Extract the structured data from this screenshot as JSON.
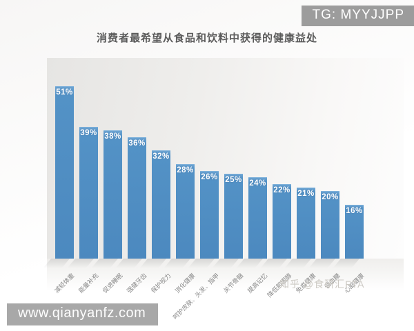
{
  "watermarks": {
    "tg_badge": "TG: MYYJJPP",
    "site_badge": "www.qianyanfz.com",
    "source_watermark": "知乎 @食研汇FTA"
  },
  "chart_data": {
    "type": "bar",
    "title": "消费者最希望从食品和饮料中获得的健康益处",
    "categories": [
      "减轻体重",
      "能量补充",
      "促进睡眠",
      "强健牙齿",
      "保护视力",
      "消化健康",
      "呵护皮肤、头发、指甲",
      "关节骨骼",
      "提高记忆",
      "降低胆固醇",
      "免疫健康",
      "调血糖",
      "心脏健康"
    ],
    "values": [
      51,
      39,
      38,
      36,
      32,
      28,
      26,
      25,
      24,
      22,
      21,
      20,
      16
    ],
    "value_labels": [
      "51%",
      "39%",
      "38%",
      "36%",
      "32%",
      "28%",
      "26%",
      "25%",
      "24%",
      "22%",
      "21%",
      "20%",
      "16%"
    ],
    "xlabel": "",
    "ylabel": "",
    "ylim": [
      0,
      52
    ],
    "grid": false,
    "legend": false,
    "bar_color": "#4c89bf",
    "value_label_color": "#ffffff",
    "category_label_color": "#8a8a8a",
    "title_color": "#5b5b5b"
  }
}
